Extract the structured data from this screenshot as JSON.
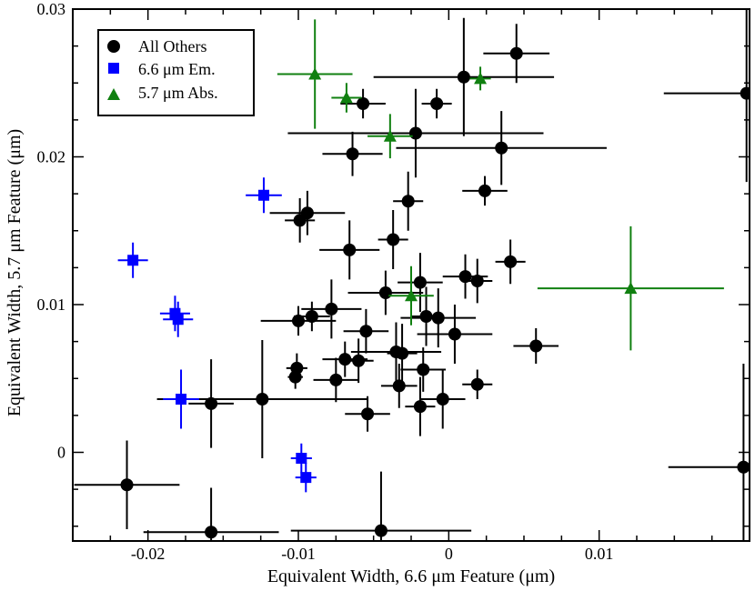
{
  "chart_data": {
    "type": "scatter",
    "title": "",
    "xlabel": "Equivalent Width, 6.6 μm Feature (μm)",
    "ylabel": "Equivalent Width, 5.7 μm Feature (μm)",
    "xlim": [
      -0.025,
      0.02
    ],
    "ylim": [
      -0.006,
      0.03
    ],
    "x_ticks": [
      -0.02,
      -0.01,
      0,
      0.01
    ],
    "x_tick_labels": [
      "-0.02",
      "-0.01",
      "0",
      "0.01"
    ],
    "y_ticks": [
      0,
      0.01,
      0.02,
      0.03
    ],
    "y_tick_labels": [
      "0",
      "0.01",
      "0.02",
      "0.03"
    ],
    "legend_position": "top-left",
    "series": [
      {
        "name": "All Others",
        "color": "#000000",
        "marker": "circle",
        "points": [
          {
            "x": 0.0045,
            "y": 0.027,
            "xerr": 0.0022,
            "yerr": 0.002
          },
          {
            "x": 0.001,
            "y": 0.0254,
            "xerr": 0.006,
            "yerr": 0.004
          },
          {
            "x": 0.0198,
            "y": 0.0243,
            "xerr": 0.0055,
            "yerr": 0.006
          },
          {
            "x": -0.0057,
            "y": 0.0236,
            "xerr": 0.0015,
            "yerr": 0.001
          },
          {
            "x": -0.0008,
            "y": 0.0236,
            "xerr": 0.001,
            "yerr": 0.001
          },
          {
            "x": -0.0022,
            "y": 0.0216,
            "xerr": 0.0085,
            "yerr": 0.003
          },
          {
            "x": 0.0035,
            "y": 0.0206,
            "xerr": 0.007,
            "yerr": 0.0025
          },
          {
            "x": -0.0064,
            "y": 0.0202,
            "xerr": 0.002,
            "yerr": 0.0015
          },
          {
            "x": 0.0024,
            "y": 0.0177,
            "xerr": 0.0015,
            "yerr": 0.001
          },
          {
            "x": -0.0027,
            "y": 0.017,
            "xerr": 0.001,
            "yerr": 0.002
          },
          {
            "x": -0.0094,
            "y": 0.0162,
            "xerr": 0.0025,
            "yerr": 0.0015
          },
          {
            "x": -0.0099,
            "y": 0.0157,
            "xerr": 0.001,
            "yerr": 0.0015
          },
          {
            "x": -0.0037,
            "y": 0.0144,
            "xerr": 0.001,
            "yerr": 0.002
          },
          {
            "x": -0.0066,
            "y": 0.0137,
            "xerr": 0.002,
            "yerr": 0.002
          },
          {
            "x": 0.0041,
            "y": 0.0129,
            "xerr": 0.001,
            "yerr": 0.0015
          },
          {
            "x": -0.0019,
            "y": 0.0115,
            "xerr": 0.0015,
            "yerr": 0.002
          },
          {
            "x": 0.0011,
            "y": 0.0119,
            "xerr": 0.0015,
            "yerr": 0.0015
          },
          {
            "x": 0.0019,
            "y": 0.0116,
            "xerr": 0.001,
            "yerr": 0.0015
          },
          {
            "x": -0.0042,
            "y": 0.0108,
            "xerr": 0.0025,
            "yerr": 0.0015
          },
          {
            "x": -0.0078,
            "y": 0.0097,
            "xerr": 0.002,
            "yerr": 0.002
          },
          {
            "x": -0.0091,
            "y": 0.0092,
            "xerr": 0.0012,
            "yerr": 0.001
          },
          {
            "x": -0.01,
            "y": 0.0089,
            "xerr": 0.0025,
            "yerr": 0.001
          },
          {
            "x": -0.0015,
            "y": 0.0092,
            "xerr": 0.001,
            "yerr": 0.002
          },
          {
            "x": -0.0007,
            "y": 0.0091,
            "xerr": 0.0025,
            "yerr": 0.002
          },
          {
            "x": -0.0055,
            "y": 0.0082,
            "xerr": 0.0015,
            "yerr": 0.0015
          },
          {
            "x": 0.0004,
            "y": 0.008,
            "xerr": 0.0025,
            "yerr": 0.002
          },
          {
            "x": 0.0058,
            "y": 0.0072,
            "xerr": 0.0015,
            "yerr": 0.0012
          },
          {
            "x": -0.0035,
            "y": 0.0068,
            "xerr": 0.003,
            "yerr": 0.002
          },
          {
            "x": -0.0031,
            "y": 0.0067,
            "xerr": 0.001,
            "yerr": 0.002
          },
          {
            "x": -0.0069,
            "y": 0.0063,
            "xerr": 0.0015,
            "yerr": 0.0012
          },
          {
            "x": -0.006,
            "y": 0.0062,
            "xerr": 0.001,
            "yerr": 0.0015
          },
          {
            "x": -0.0101,
            "y": 0.0057,
            "xerr": 0.0007,
            "yerr": 0.001
          },
          {
            "x": -0.0017,
            "y": 0.0056,
            "xerr": 0.0015,
            "yerr": 0.0015
          },
          {
            "x": -0.0102,
            "y": 0.0051,
            "xerr": 0.0005,
            "yerr": 0.0008
          },
          {
            "x": -0.0075,
            "y": 0.0049,
            "xerr": 0.0015,
            "yerr": 0.0015
          },
          {
            "x": 0.0019,
            "y": 0.0046,
            "xerr": 0.001,
            "yerr": 0.001
          },
          {
            "x": -0.0033,
            "y": 0.0045,
            "xerr": 0.0012,
            "yerr": 0.0015
          },
          {
            "x": -0.0124,
            "y": 0.0036,
            "xerr": 0.007,
            "yerr": 0.004
          },
          {
            "x": -0.0158,
            "y": 0.0033,
            "xerr": 0.0015,
            "yerr": 0.003
          },
          {
            "x": -0.0004,
            "y": 0.0036,
            "xerr": 0.0015,
            "yerr": 0.002
          },
          {
            "x": -0.0019,
            "y": 0.0031,
            "xerr": 0.001,
            "yerr": 0.002
          },
          {
            "x": -0.0054,
            "y": 0.0026,
            "xerr": 0.0015,
            "yerr": 0.0012
          },
          {
            "x": -0.0214,
            "y": -0.0022,
            "xerr": 0.0035,
            "yerr": 0.003
          },
          {
            "x": 0.0196,
            "y": -0.001,
            "xerr": 0.005,
            "yerr": 0.007
          },
          {
            "x": -0.0158,
            "y": -0.0054,
            "xerr": 0.0045,
            "yerr": 0.003
          },
          {
            "x": -0.0045,
            "y": -0.0053,
            "xerr": 0.006,
            "yerr": 0.004
          }
        ]
      },
      {
        "name": "6.6 μm Em.",
        "color": "#0000ff",
        "marker": "square",
        "points": [
          {
            "x": -0.0123,
            "y": 0.0174,
            "xerr": 0.0012,
            "yerr": 0.0012
          },
          {
            "x": -0.021,
            "y": 0.013,
            "xerr": 0.001,
            "yerr": 0.0012
          },
          {
            "x": -0.0182,
            "y": 0.0094,
            "xerr": 0.001,
            "yerr": 0.0012
          },
          {
            "x": -0.018,
            "y": 0.009,
            "xerr": 0.001,
            "yerr": 0.0012
          },
          {
            "x": -0.0178,
            "y": 0.0036,
            "xerr": 0.0012,
            "yerr": 0.002
          },
          {
            "x": -0.0098,
            "y": -0.0004,
            "xerr": 0.0007,
            "yerr": 0.001
          },
          {
            "x": -0.0095,
            "y": -0.0017,
            "xerr": 0.0007,
            "yerr": 0.001
          }
        ]
      },
      {
        "name": "5.7 μm Abs.",
        "color": "#108010",
        "marker": "triangle",
        "points": [
          {
            "x": -0.0089,
            "y": 0.0256,
            "xerr": 0.0025,
            "yerr": 0.0037
          },
          {
            "x": -0.0068,
            "y": 0.024,
            "xerr": 0.001,
            "yerr": 0.001
          },
          {
            "x": 0.0021,
            "y": 0.0253,
            "xerr": 0.0007,
            "yerr": 0.0008
          },
          {
            "x": -0.0039,
            "y": 0.0214,
            "xerr": 0.0015,
            "yerr": 0.0015
          },
          {
            "x": -0.0025,
            "y": 0.0106,
            "xerr": 0.0015,
            "yerr": 0.002
          },
          {
            "x": 0.0121,
            "y": 0.0111,
            "xerr": 0.0062,
            "yerr": 0.0042
          }
        ]
      }
    ]
  }
}
